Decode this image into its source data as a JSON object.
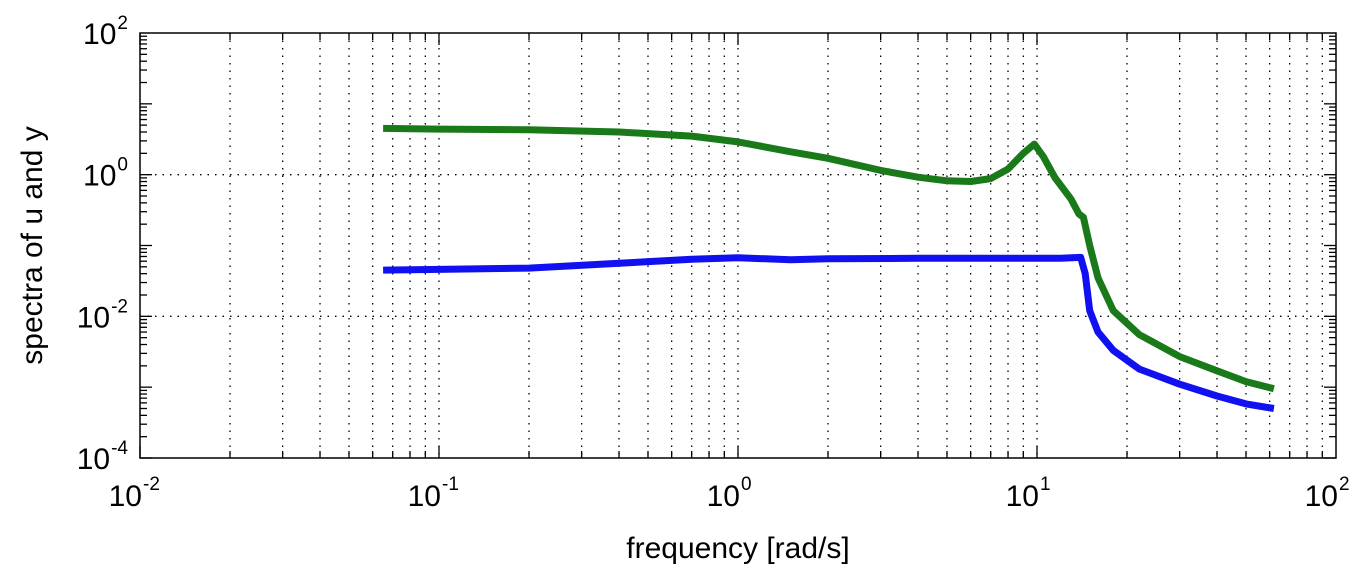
{
  "chart_data": {
    "type": "line",
    "xscale": "log",
    "yscale": "log",
    "xlabel": "frequency [rad/s]",
    "ylabel": "spectra of u and y",
    "xlim": [
      0.01,
      100
    ],
    "ylim": [
      0.0001,
      100
    ],
    "grid": true,
    "x_ticks": [
      {
        "base": "10",
        "exp": "-2"
      },
      {
        "base": "10",
        "exp": "-1"
      },
      {
        "base": "10",
        "exp": "0"
      },
      {
        "base": "10",
        "exp": "1"
      },
      {
        "base": "10",
        "exp": "2"
      }
    ],
    "y_ticks": [
      {
        "base": "10",
        "exp": "-4"
      },
      {
        "base": "10",
        "exp": "-2"
      },
      {
        "base": "10",
        "exp": "0"
      },
      {
        "base": "10",
        "exp": "2"
      }
    ],
    "series": [
      {
        "color": "#1a7a1a",
        "x": [
          0.065,
          0.1,
          0.2,
          0.4,
          0.7,
          1.0,
          1.5,
          2.0,
          3.0,
          4.0,
          5.0,
          6.0,
          7.0,
          8.0,
          9.0,
          9.8,
          10.5,
          11.5,
          13.0,
          13.8,
          14.3,
          15.0,
          16.0,
          18.0,
          22.0,
          30.0,
          40.0,
          50.0,
          62.0
        ],
        "y": [
          4.5,
          4.4,
          4.3,
          4.0,
          3.5,
          2.9,
          2.1,
          1.7,
          1.15,
          0.92,
          0.82,
          0.8,
          0.88,
          1.2,
          2.0,
          2.7,
          1.8,
          0.9,
          0.45,
          0.28,
          0.25,
          0.1,
          0.035,
          0.012,
          0.0055,
          0.0027,
          0.0017,
          0.0012,
          0.00095
        ]
      },
      {
        "color": "#1010f0",
        "x": [
          0.065,
          0.1,
          0.2,
          0.4,
          0.7,
          1.0,
          1.5,
          2.0,
          4.0,
          8.0,
          12.0,
          14.0,
          14.5,
          15.0,
          16.0,
          18.0,
          22.0,
          30.0,
          40.0,
          50.0,
          62.0
        ],
        "y": [
          0.045,
          0.046,
          0.048,
          0.056,
          0.064,
          0.067,
          0.063,
          0.065,
          0.066,
          0.066,
          0.066,
          0.068,
          0.04,
          0.012,
          0.006,
          0.0033,
          0.0018,
          0.0011,
          0.00075,
          0.00058,
          0.0005
        ]
      }
    ]
  }
}
